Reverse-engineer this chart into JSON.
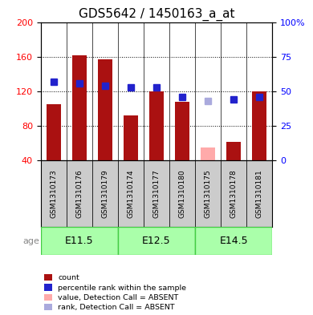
{
  "title": "GDS5642 / 1450163_a_at",
  "samples": [
    "GSM1310173",
    "GSM1310176",
    "GSM1310179",
    "GSM1310174",
    "GSM1310177",
    "GSM1310180",
    "GSM1310175",
    "GSM1310178",
    "GSM1310181"
  ],
  "count_values": [
    105,
    162,
    157,
    92,
    120,
    108,
    null,
    62,
    120
  ],
  "count_absent": [
    null,
    null,
    null,
    null,
    null,
    null,
    55,
    null,
    null
  ],
  "rank_values": [
    57,
    56,
    54,
    53,
    53,
    46,
    null,
    44,
    46
  ],
  "rank_absent": [
    null,
    null,
    null,
    null,
    null,
    null,
    43,
    null,
    null
  ],
  "age_groups": [
    {
      "label": "E11.5",
      "start": 0,
      "end": 3
    },
    {
      "label": "E12.5",
      "start": 3,
      "end": 6
    },
    {
      "label": "E14.5",
      "start": 6,
      "end": 9
    }
  ],
  "ylim_left": [
    40,
    200
  ],
  "ylim_right": [
    0,
    100
  ],
  "yticks_left": [
    40,
    80,
    120,
    160,
    200
  ],
  "yticks_right": [
    0,
    25,
    50,
    75,
    100
  ],
  "bar_color": "#aa1111",
  "bar_absent_color": "#ffaaaa",
  "rank_color": "#2222cc",
  "rank_absent_color": "#aaaadd",
  "age_bg_color": "#aaffaa",
  "age_border_color": "#44cc44",
  "sample_bg_color": "#cccccc",
  "bg_color": "#ffffff",
  "grid_color": "#000000",
  "title_fontsize": 11,
  "tick_fontsize": 8,
  "bar_width": 0.55,
  "rank_marker_size": 6
}
